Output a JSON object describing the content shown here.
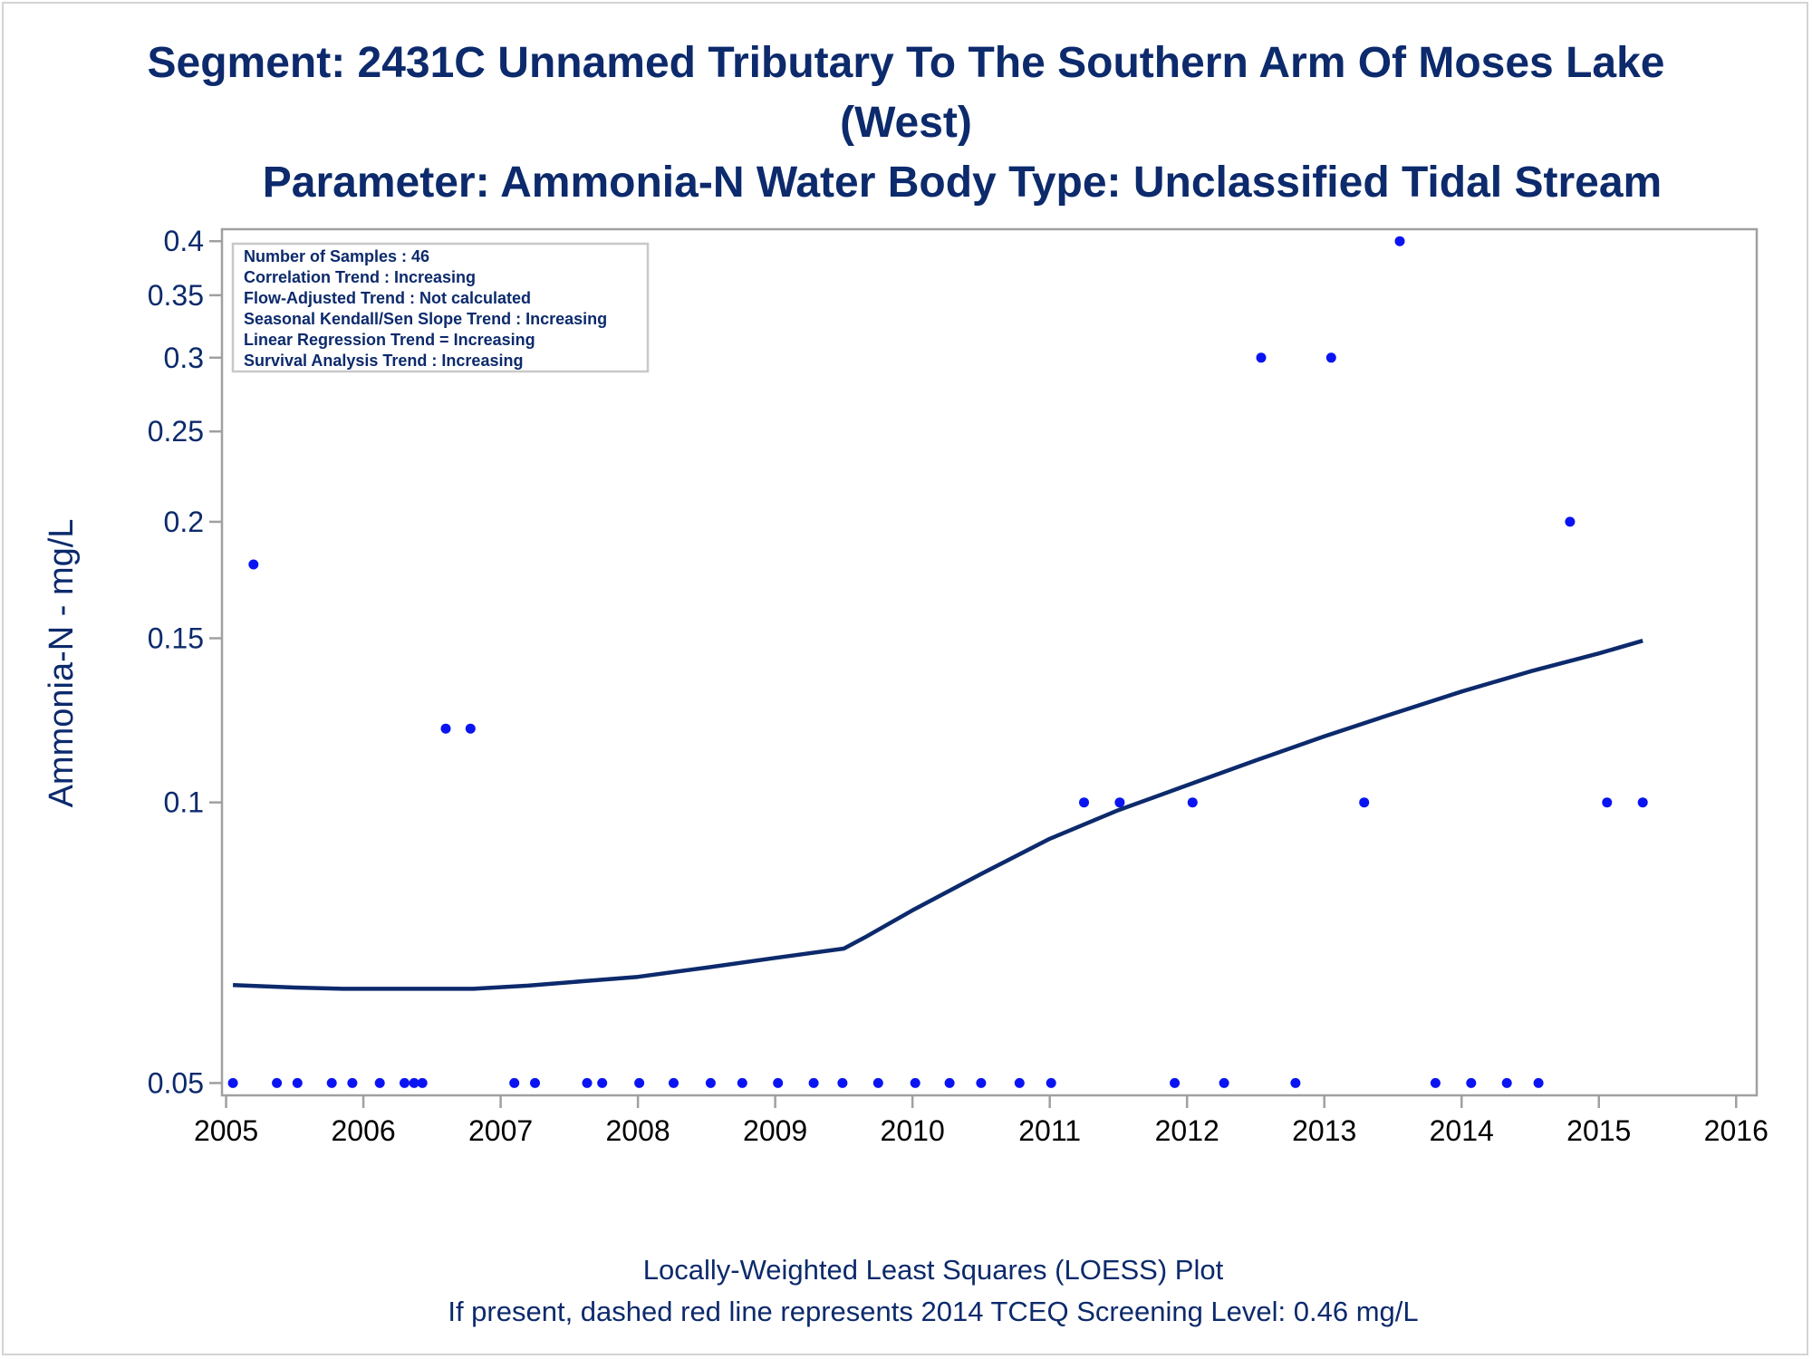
{
  "title": {
    "line1": "Segment: 2431C  Unnamed Tributary To The Southern Arm Of Moses Lake",
    "line2": "(West)",
    "line3": "Parameter: Ammonia-N   Water Body Type: Unclassified Tidal Stream"
  },
  "info_box": [
    "Number of Samples : 46",
    "Correlation Trend : Increasing",
    "Flow-Adjusted Trend : Not calculated",
    "Seasonal Kendall/Sen Slope Trend : Increasing",
    "Linear Regression Trend = Increasing",
    "Survival Analysis Trend : Increasing"
  ],
  "footnote": {
    "line1": "Locally-Weighted Least Squares (LOESS) Plot",
    "line2": "If present, dashed red line represents 2014 TCEQ Screening Level: 0.46 mg/L"
  },
  "colors": {
    "axis_text": "#0c2a6c",
    "points": "#0a14f2",
    "loess": "#0c2a6c",
    "frame": "#a0a0a0"
  },
  "chart_data": {
    "type": "scatter",
    "ylabel": "Ammonia-N - mg/L",
    "xlabel": "",
    "y_scale": "log",
    "ylim": [
      0.0485,
      0.412
    ],
    "xlim": [
      2004.97,
      2016.15
    ],
    "y_ticks": [
      {
        "value": 0.05,
        "label": "0.05"
      },
      {
        "value": 0.1,
        "label": "0.1"
      },
      {
        "value": 0.15,
        "label": "0.15"
      },
      {
        "value": 0.2,
        "label": "0.2"
      },
      {
        "value": 0.25,
        "label": "0.25"
      },
      {
        "value": 0.3,
        "label": "0.3"
      },
      {
        "value": 0.35,
        "label": "0.35"
      },
      {
        "value": 0.4,
        "label": "0.4"
      }
    ],
    "x_ticks": [
      {
        "value": 2005,
        "label": "2005"
      },
      {
        "value": 2006,
        "label": "2006"
      },
      {
        "value": 2007,
        "label": "2007"
      },
      {
        "value": 2008,
        "label": "2008"
      },
      {
        "value": 2009,
        "label": "2009"
      },
      {
        "value": 2010,
        "label": "2010"
      },
      {
        "value": 2011,
        "label": "2011"
      },
      {
        "value": 2012,
        "label": "2012"
      },
      {
        "value": 2013,
        "label": "2013"
      },
      {
        "value": 2014,
        "label": "2014"
      },
      {
        "value": 2015,
        "label": "2015"
      },
      {
        "value": 2016,
        "label": "2016"
      }
    ],
    "series": [
      {
        "points": [
          {
            "x": 2005.05,
            "y": 0.05
          },
          {
            "x": 2005.2,
            "y": 0.18
          },
          {
            "x": 2005.37,
            "y": 0.05
          },
          {
            "x": 2005.52,
            "y": 0.05
          },
          {
            "x": 2005.77,
            "y": 0.05
          },
          {
            "x": 2005.92,
            "y": 0.05
          },
          {
            "x": 2006.12,
            "y": 0.05
          },
          {
            "x": 2006.3,
            "y": 0.05
          },
          {
            "x": 2006.37,
            "y": 0.05
          },
          {
            "x": 2006.43,
            "y": 0.05
          },
          {
            "x": 2006.6,
            "y": 0.12
          },
          {
            "x": 2006.78,
            "y": 0.12
          },
          {
            "x": 2007.1,
            "y": 0.05
          },
          {
            "x": 2007.25,
            "y": 0.05
          },
          {
            "x": 2007.63,
            "y": 0.05
          },
          {
            "x": 2007.74,
            "y": 0.05
          },
          {
            "x": 2008.01,
            "y": 0.05
          },
          {
            "x": 2008.26,
            "y": 0.05
          },
          {
            "x": 2008.53,
            "y": 0.05
          },
          {
            "x": 2008.76,
            "y": 0.05
          },
          {
            "x": 2009.02,
            "y": 0.05
          },
          {
            "x": 2009.28,
            "y": 0.05
          },
          {
            "x": 2009.49,
            "y": 0.05
          },
          {
            "x": 2009.75,
            "y": 0.05
          },
          {
            "x": 2010.02,
            "y": 0.05
          },
          {
            "x": 2010.27,
            "y": 0.05
          },
          {
            "x": 2010.5,
            "y": 0.05
          },
          {
            "x": 2010.78,
            "y": 0.05
          },
          {
            "x": 2011.01,
            "y": 0.05
          },
          {
            "x": 2011.25,
            "y": 0.1
          },
          {
            "x": 2011.51,
            "y": 0.1
          },
          {
            "x": 2011.91,
            "y": 0.05
          },
          {
            "x": 2012.04,
            "y": 0.1
          },
          {
            "x": 2012.27,
            "y": 0.05
          },
          {
            "x": 2012.54,
            "y": 0.3
          },
          {
            "x": 2012.79,
            "y": 0.05
          },
          {
            "x": 2013.05,
            "y": 0.3
          },
          {
            "x": 2013.29,
            "y": 0.1
          },
          {
            "x": 2013.55,
            "y": 0.4
          },
          {
            "x": 2013.81,
            "y": 0.05
          },
          {
            "x": 2014.07,
            "y": 0.05
          },
          {
            "x": 2014.33,
            "y": 0.05
          },
          {
            "x": 2014.56,
            "y": 0.05
          },
          {
            "x": 2014.79,
            "y": 0.2
          },
          {
            "x": 2015.06,
            "y": 0.1
          },
          {
            "x": 2015.32,
            "y": 0.1
          }
        ]
      },
      {
        "line": [
          {
            "x": 2005.05,
            "y": 0.0637
          },
          {
            "x": 2005.5,
            "y": 0.0633
          },
          {
            "x": 2005.85,
            "y": 0.0631
          },
          {
            "x": 2006.5,
            "y": 0.0631
          },
          {
            "x": 2006.8,
            "y": 0.0631
          },
          {
            "x": 2007.2,
            "y": 0.0636
          },
          {
            "x": 2007.6,
            "y": 0.0643
          },
          {
            "x": 2008.0,
            "y": 0.065
          },
          {
            "x": 2008.5,
            "y": 0.0665
          },
          {
            "x": 2009.0,
            "y": 0.0681
          },
          {
            "x": 2009.5,
            "y": 0.0697
          },
          {
            "x": 2009.65,
            "y": 0.0716
          },
          {
            "x": 2010.0,
            "y": 0.0766
          },
          {
            "x": 2010.5,
            "y": 0.0838
          },
          {
            "x": 2011.0,
            "y": 0.0914
          },
          {
            "x": 2011.5,
            "y": 0.0981
          },
          {
            "x": 2012.0,
            "y": 0.1043
          },
          {
            "x": 2012.5,
            "y": 0.1109
          },
          {
            "x": 2013.0,
            "y": 0.1177
          },
          {
            "x": 2013.5,
            "y": 0.1245
          },
          {
            "x": 2014.0,
            "y": 0.1315
          },
          {
            "x": 2014.5,
            "y": 0.1382
          },
          {
            "x": 2015.0,
            "y": 0.1445
          },
          {
            "x": 2015.32,
            "y": 0.1491
          }
        ]
      }
    ]
  }
}
